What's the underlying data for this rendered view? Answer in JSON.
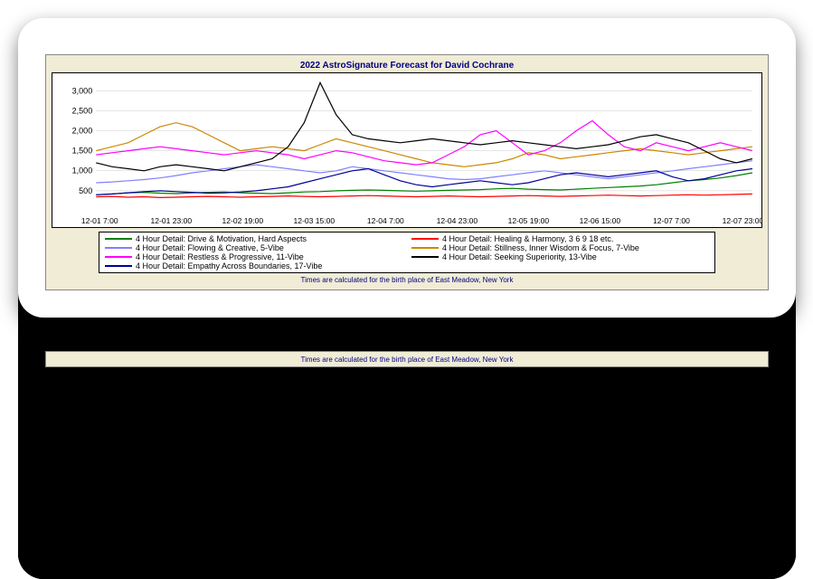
{
  "chart": {
    "type": "line",
    "title": "2022 AstroSignature Forecast for David Cochrane",
    "footnote": "Times are calculated for the birth place of East Meadow, New York",
    "background_color": "#f0ecd6",
    "plot_background": "#ffffff",
    "border_color": "#000000",
    "title_color": "#000080",
    "title_fontsize": 10,
    "footnote_fontsize": 8,
    "ylim": [
      0,
      3300
    ],
    "ytick_step": 500,
    "y_ticks": [
      "500",
      "1,000",
      "1,500",
      "2,000",
      "2,500",
      "3,000"
    ],
    "x_labels": [
      "12-01 7:00",
      "12-01 23:00",
      "12-02 19:00",
      "12-03 15:00",
      "12-04 7:00",
      "12-04 23:00",
      "12-05 19:00",
      "12-06 15:00",
      "12-07 7:00",
      "12-07 23:00"
    ],
    "x_count": 42,
    "line_width": 1.2,
    "series": [
      {
        "name": "4 Hour Detail: Drive & Motivation, Hard Aspects",
        "color": "#008000",
        "values": [
          400,
          420,
          450,
          460,
          440,
          430,
          450,
          460,
          470,
          450,
          440,
          430,
          450,
          470,
          480,
          500,
          510,
          520,
          510,
          500,
          490,
          500,
          510,
          520,
          530,
          550,
          560,
          540,
          530,
          520,
          540,
          560,
          580,
          600,
          620,
          650,
          700,
          750,
          780,
          820,
          880,
          950
        ]
      },
      {
        "name": "4 Hour Detail: Healing & Harmony, 3 6 9 18 etc.",
        "color": "#ff0000",
        "values": [
          350,
          360,
          340,
          350,
          330,
          340,
          350,
          360,
          350,
          340,
          350,
          360,
          370,
          360,
          350,
          360,
          370,
          380,
          370,
          360,
          350,
          360,
          370,
          360,
          350,
          360,
          370,
          380,
          370,
          360,
          370,
          380,
          390,
          380,
          370,
          380,
          390,
          400,
          390,
          400,
          410,
          420
        ]
      },
      {
        "name": "4 Hour Detail: Flowing & Creative, 5-Vibe",
        "color": "#8080ff",
        "values": [
          700,
          720,
          750,
          780,
          820,
          880,
          950,
          1000,
          1050,
          1100,
          1150,
          1100,
          1050,
          1000,
          950,
          1000,
          1100,
          1050,
          1000,
          950,
          900,
          850,
          800,
          780,
          800,
          850,
          900,
          950,
          1000,
          950,
          900,
          850,
          800,
          850,
          900,
          950,
          1000,
          1050,
          1100,
          1150,
          1200,
          1250
        ]
      },
      {
        "name": "4 Hour Detail: Stillness, Inner Wisdom & Focus, 7-Vibe",
        "color": "#cc8800",
        "values": [
          1500,
          1600,
          1700,
          1900,
          2100,
          2200,
          2100,
          1900,
          1700,
          1500,
          1550,
          1600,
          1550,
          1500,
          1650,
          1800,
          1700,
          1600,
          1500,
          1400,
          1300,
          1200,
          1150,
          1100,
          1150,
          1200,
          1300,
          1450,
          1400,
          1300,
          1350,
          1400,
          1450,
          1500,
          1550,
          1500,
          1450,
          1400,
          1450,
          1500,
          1550,
          1600
        ]
      },
      {
        "name": "4 Hour Detail: Restless & Progressive, 11-Vibe",
        "color": "#ff00ff",
        "values": [
          1400,
          1450,
          1500,
          1550,
          1600,
          1550,
          1500,
          1450,
          1400,
          1450,
          1500,
          1450,
          1400,
          1300,
          1400,
          1500,
          1450,
          1350,
          1250,
          1200,
          1150,
          1200,
          1400,
          1600,
          1900,
          2000,
          1700,
          1400,
          1500,
          1700,
          2000,
          2250,
          1900,
          1600,
          1500,
          1700,
          1600,
          1500,
          1600,
          1700,
          1600,
          1500
        ]
      },
      {
        "name": "4 Hour Detail: Seeking Superiority, 13-Vibe",
        "color": "#000000",
        "values": [
          1200,
          1100,
          1050,
          1000,
          1100,
          1150,
          1100,
          1050,
          1000,
          1100,
          1200,
          1300,
          1600,
          2200,
          3200,
          2400,
          1900,
          1800,
          1750,
          1700,
          1750,
          1800,
          1750,
          1700,
          1650,
          1700,
          1750,
          1700,
          1650,
          1600,
          1550,
          1600,
          1650,
          1750,
          1850,
          1900,
          1800,
          1700,
          1500,
          1300,
          1200,
          1300
        ]
      },
      {
        "name": "4 Hour Detail: Empathy Across Boundaries, 17-Vibe",
        "color": "#000099",
        "values": [
          400,
          420,
          450,
          480,
          500,
          480,
          460,
          440,
          450,
          470,
          500,
          550,
          600,
          700,
          800,
          900,
          1000,
          1050,
          900,
          750,
          650,
          600,
          650,
          700,
          750,
          700,
          650,
          700,
          800,
          900,
          950,
          900,
          850,
          900,
          950,
          1000,
          850,
          750,
          800,
          900,
          1000,
          1050
        ]
      }
    ]
  },
  "secondary_strip_text": "Times are calculated for the birth place of East Meadow, New York"
}
